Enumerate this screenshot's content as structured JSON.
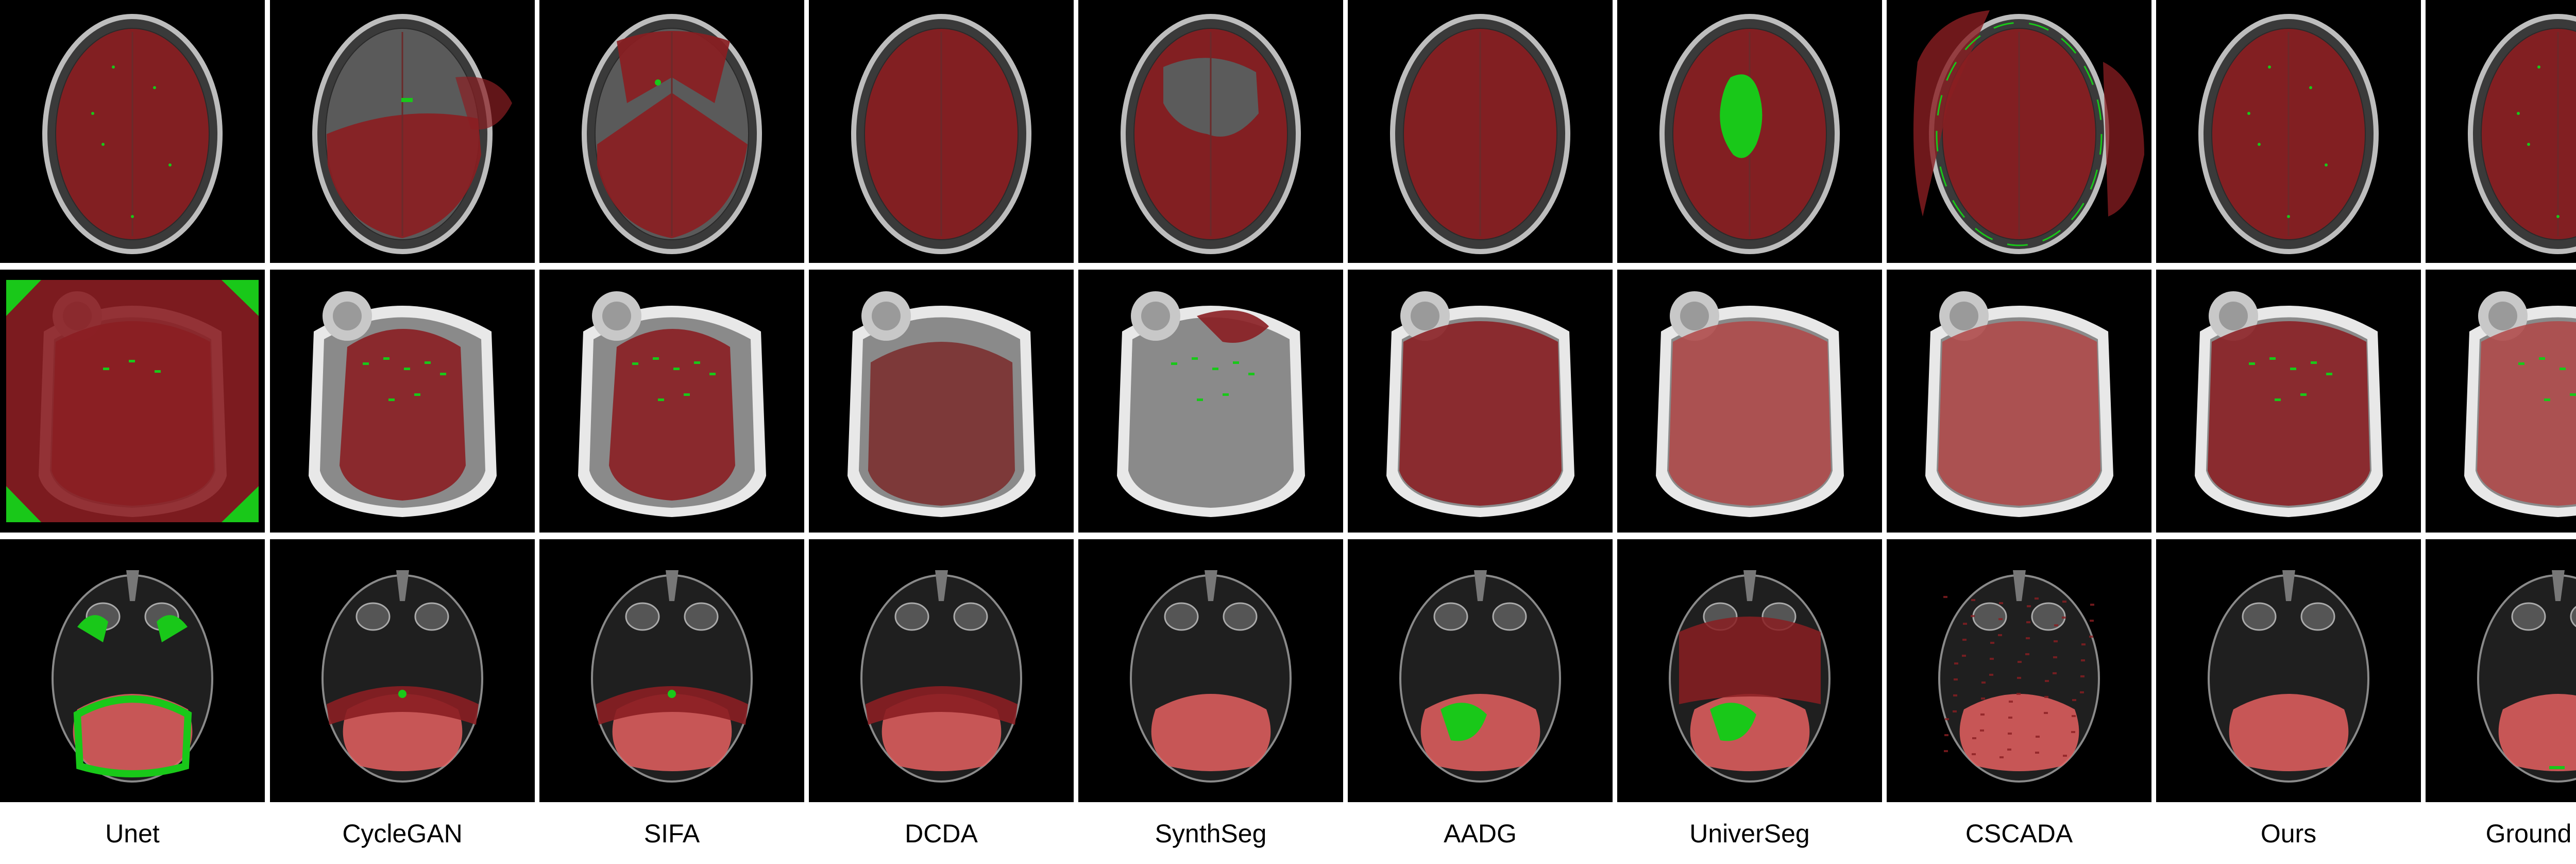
{
  "methods": [
    "Unet",
    "CycleGAN",
    "SIFA",
    "DCDA",
    "SynthSeg",
    "AADG",
    "UniverSeg",
    "CSCADA",
    "Ours",
    "Ground truth"
  ],
  "rows": [
    {
      "modality": "t1-mri-axial-top"
    },
    {
      "modality": "ct-axial-skull"
    },
    {
      "modality": "mri-axial-posterior-fossa"
    }
  ],
  "colors": {
    "background": "#000000",
    "label_red": "#8a1e22",
    "label_light_red": "#e56060",
    "label_green": "#19c819",
    "mri_tissue": "#2c2c2c",
    "ct_bone": "#e8e8e8",
    "ct_tissue": "#8a8a8a"
  }
}
